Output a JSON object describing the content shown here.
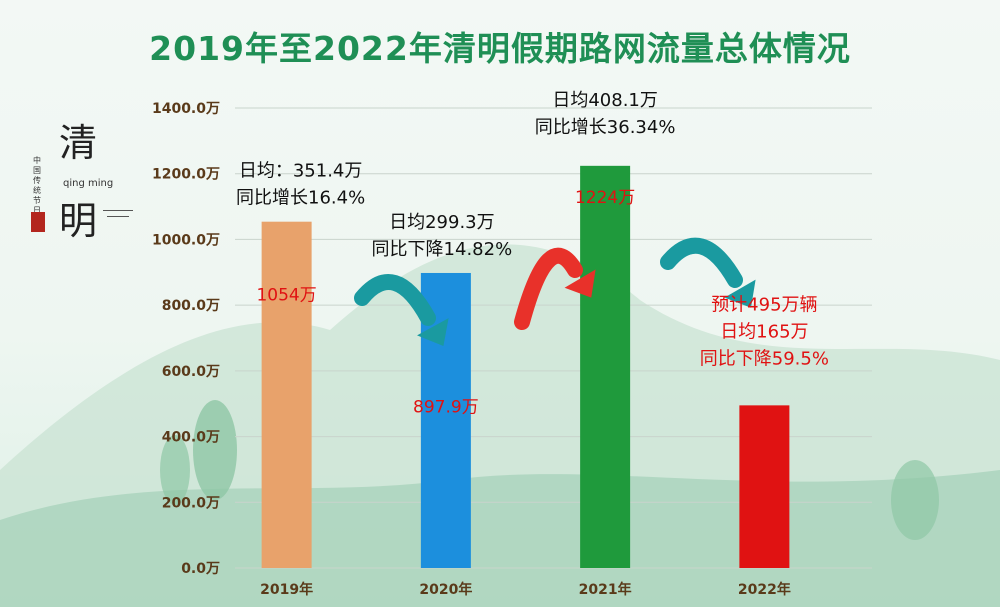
{
  "title": "2019年至2022年清明假期路网流量总体情况",
  "brand": {
    "big_char_1": "清",
    "big_char_2": "明",
    "vertical_text": "中国传统节日",
    "pinyin": "qing ming"
  },
  "chart_data": {
    "type": "bar",
    "title": "2019年至2022年清明假期路网流量总体情况",
    "categories": [
      "2019年",
      "2020年",
      "2021年",
      "2022年"
    ],
    "values": [
      1054,
      897.9,
      1224,
      495
    ],
    "value_labels": [
      "1054万",
      "897.9万",
      "1224万",
      ""
    ],
    "bar_colors": [
      "#e8a26b",
      "#1c8fdd",
      "#1f9a3c",
      "#e01212"
    ],
    "ylim": [
      0,
      1400
    ],
    "yticks": [
      0,
      200,
      400,
      600,
      800,
      1000,
      1200,
      1400
    ],
    "ytick_labels": [
      "0.0万",
      "200.0万",
      "400.0万",
      "600.0万",
      "800.0万",
      "1000.0万",
      "1200.0万",
      "1400.0万"
    ],
    "grid": true,
    "annotations": [
      {
        "lines": [
          "日均：351.4万",
          "同比增长16.4%"
        ],
        "color": "#111111"
      },
      {
        "lines": [
          "日均299.3万",
          "同比下降14.82%"
        ],
        "color": "#111111"
      },
      {
        "lines": [
          "日均408.1万",
          "同比增长36.34%"
        ],
        "color": "#111111"
      },
      {
        "lines": [
          "预计495万辆",
          "日均165万",
          "同比下降59.5%"
        ],
        "color": "#e01212"
      }
    ]
  },
  "colors": {
    "title": "#1f8f55",
    "arrow_teal": "#1a9aa0",
    "arrow_red": "#e8312a",
    "value_label": "#e01212",
    "ytick": "#5a3a1a"
  }
}
